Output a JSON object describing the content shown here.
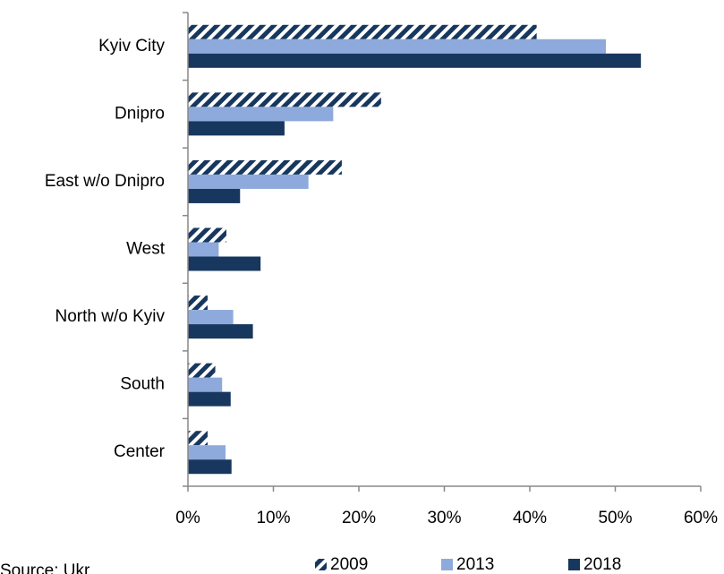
{
  "chart_data": {
    "type": "hbar",
    "categories": [
      "Kyiv City",
      "Dnipro",
      "East w/o Dnipro",
      "West",
      "North w/o Kyiv",
      "South",
      "Center"
    ],
    "series": [
      {
        "name": "2009",
        "color": "#17375e",
        "hatch": true,
        "values": [
          40.8,
          22.6,
          18.0,
          4.5,
          2.3,
          3.2,
          2.3
        ]
      },
      {
        "name": "2013",
        "color": "#8eaadc",
        "hatch": false,
        "values": [
          48.9,
          17.0,
          14.1,
          3.6,
          5.3,
          4.0,
          4.4
        ]
      },
      {
        "name": "2018",
        "color": "#17375e",
        "hatch": false,
        "values": [
          53.0,
          11.3,
          6.1,
          8.5,
          7.6,
          5.0,
          5.1
        ]
      }
    ],
    "xlim": [
      0,
      60
    ],
    "xticks": [
      {
        "value": 0,
        "label": "0%"
      },
      {
        "value": 10,
        "label": "10%"
      },
      {
        "value": 20,
        "label": "20%"
      },
      {
        "value": 30,
        "label": "30%"
      },
      {
        "value": 40,
        "label": "40%"
      },
      {
        "value": 50,
        "label": "50%"
      },
      {
        "value": 60,
        "label": "60%"
      }
    ],
    "source": "Source: Ukr"
  }
}
